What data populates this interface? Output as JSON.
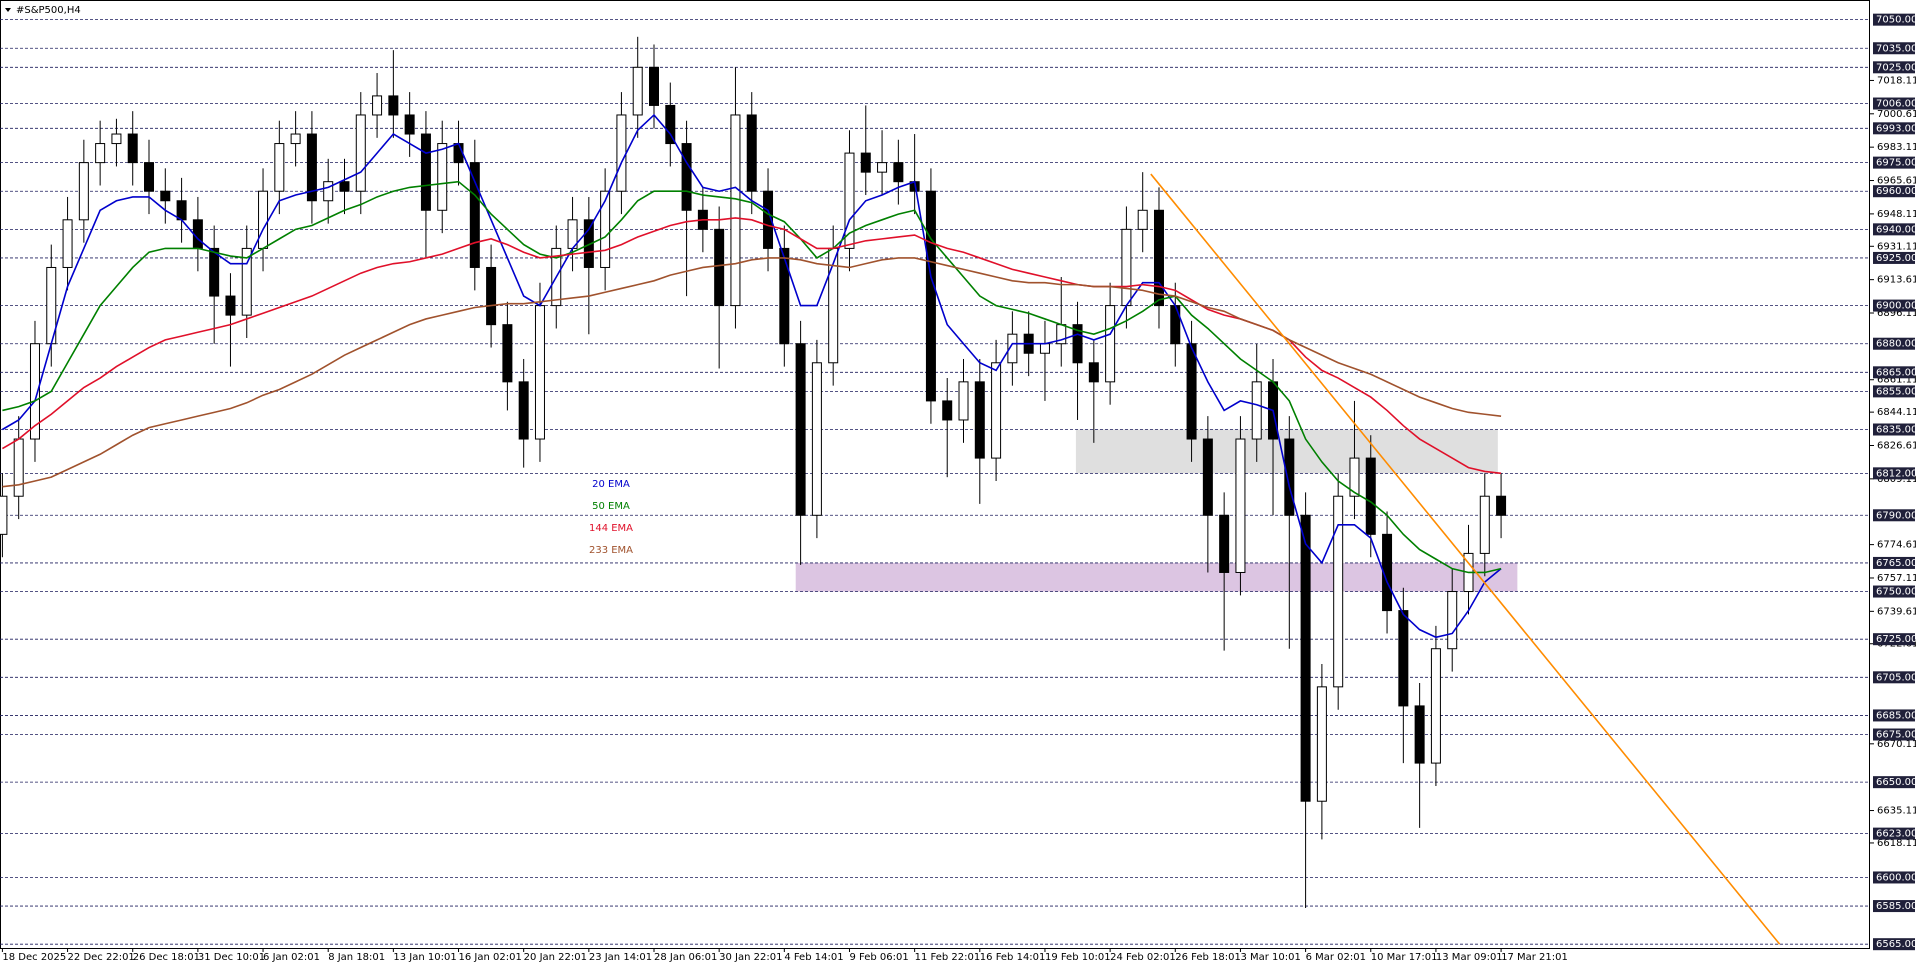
{
  "chart_data": {
    "type": "candlestick",
    "title": "#S&P500,H4",
    "categories": [
      "18 Dec 2025",
      null,
      null,
      null,
      "22 Dec 22:01",
      null,
      null,
      null,
      "26 Dec 18:01",
      null,
      null,
      null,
      "31 Dec 10:01",
      null,
      null,
      null,
      "6 Jan 02:01",
      null,
      null,
      null,
      "8 Jan 18:01",
      null,
      null,
      null,
      "13 Jan 10:01",
      null,
      null,
      null,
      "16 Jan 02:01",
      null,
      null,
      null,
      "20 Jan 22:01",
      null,
      null,
      null,
      "23 Jan 14:01",
      null,
      null,
      null,
      "28 Jan 06:01",
      null,
      null,
      null,
      "30 Jan 22:01",
      null,
      null,
      null,
      "4 Feb 14:01",
      null,
      null,
      null,
      "9 Feb 06:01",
      null,
      null,
      null,
      "11 Feb 22:01",
      null,
      null,
      null,
      "16 Feb 14:01",
      null,
      null,
      null,
      "19 Feb 10:01",
      null,
      null,
      null,
      "24 Feb 02:01",
      null,
      null,
      null,
      "26 Feb 18:01",
      null,
      null,
      null,
      "3 Mar 10:01",
      null,
      null,
      null,
      "6 Mar 02:01",
      null,
      null,
      null,
      "10 Mar 17:01",
      null,
      null,
      null,
      "13 Mar 09:01",
      null,
      null,
      null,
      "17 Mar 21:01"
    ],
    "open": [
      6780,
      6800,
      6830,
      6880,
      6920,
      6945,
      6975,
      6985,
      6990,
      6975,
      6960,
      6955,
      6945,
      6930,
      6905,
      6895,
      6930,
      6960,
      6985,
      6990,
      6955,
      6965,
      6960,
      7000,
      7010,
      7000,
      6990,
      6950,
      6985,
      6975,
      6920,
      6890,
      6860,
      6830,
      6900,
      6930,
      6945,
      6920,
      6960,
      7000,
      7025,
      7005,
      6985,
      6950,
      6940,
      6900,
      7000,
      6960,
      6930,
      6880,
      6790,
      6870,
      6930,
      6980,
      6970,
      6975,
      6965,
      6960,
      6850,
      6840,
      6860,
      6820,
      6870,
      6885,
      6875,
      6880,
      6890,
      6870,
      6860,
      6900,
      6940,
      6950,
      6900,
      6880,
      6830,
      6790,
      6760,
      6830,
      6860,
      6830,
      6790,
      6640,
      6700,
      6800,
      6820,
      6780,
      6740,
      6690,
      6660,
      6720,
      6750,
      6770,
      6800
    ],
    "high": [
      6812,
      6842,
      6892,
      6932,
      6957,
      6987,
      6997,
      6998,
      7002,
      6987,
      6972,
      6967,
      6957,
      6942,
      6917,
      6942,
      6972,
      6997,
      7002,
      7002,
      6977,
      6977,
      7012,
      7022,
      7034,
      7012,
      7002,
      6997,
      6997,
      6987,
      6932,
      6902,
      6872,
      6912,
      6942,
      6957,
      6957,
      6972,
      7012,
      7041,
      7037,
      7017,
      6997,
      6962,
      6952,
      7025,
      7012,
      6972,
      6942,
      6892,
      6882,
      6942,
      6992,
      7005,
      6992,
      6987,
      6990,
      6972,
      6862,
      6872,
      6872,
      6882,
      6897,
      6897,
      6892,
      6915,
      6902,
      6882,
      6912,
      6952,
      6970,
      6962,
      6912,
      6892,
      6842,
      6802,
      6842,
      6880,
      6872,
      6842,
      6802,
      6712,
      6812,
      6850,
      6832,
      6792,
      6752,
      6702,
      6732,
      6762,
      6785,
      6812,
      6812
    ],
    "low": [
      6768,
      6788,
      6818,
      6868,
      6908,
      6933,
      6963,
      6973,
      6963,
      6948,
      6943,
      6933,
      6918,
      6880,
      6868,
      6883,
      6918,
      6948,
      6973,
      6943,
      6943,
      6948,
      6948,
      6988,
      6988,
      6978,
      6925,
      6938,
      6963,
      6908,
      6878,
      6845,
      6815,
      6818,
      6888,
      6918,
      6885,
      6908,
      6948,
      6988,
      6993,
      6973,
      6905,
      6928,
      6867,
      6888,
      6948,
      6918,
      6868,
      6764,
      6778,
      6858,
      6918,
      6958,
      6958,
      6953,
      6948,
      6838,
      6810,
      6828,
      6796,
      6808,
      6858,
      6863,
      6850,
      6868,
      6840,
      6828,
      6848,
      6888,
      6928,
      6888,
      6868,
      6818,
      6760,
      6719,
      6748,
      6818,
      6790,
      6720,
      6584,
      6620,
      6688,
      6788,
      6768,
      6728,
      6660,
      6626,
      6648,
      6708,
      6738,
      6758,
      6778
    ],
    "close": [
      6800,
      6830,
      6880,
      6920,
      6945,
      6975,
      6985,
      6990,
      6975,
      6960,
      6955,
      6945,
      6930,
      6905,
      6895,
      6930,
      6960,
      6985,
      6990,
      6955,
      6965,
      6960,
      7000,
      7010,
      7000,
      6990,
      6950,
      6985,
      6975,
      6920,
      6890,
      6860,
      6830,
      6900,
      6930,
      6945,
      6920,
      6960,
      7000,
      7025,
      7005,
      6985,
      6950,
      6940,
      6900,
      7000,
      6960,
      6930,
      6880,
      6790,
      6870,
      6930,
      6980,
      6970,
      6975,
      6965,
      6960,
      6850,
      6840,
      6860,
      6820,
      6870,
      6885,
      6875,
      6880,
      6890,
      6870,
      6860,
      6900,
      6940,
      6950,
      6900,
      6880,
      6830,
      6790,
      6760,
      6830,
      6860,
      6830,
      6790,
      6640,
      6700,
      6800,
      6820,
      6780,
      6740,
      6690,
      6660,
      6720,
      6750,
      6770,
      6800,
      6790
    ],
    "series": [
      {
        "name": "20 EMA",
        "color": "#0000cc",
        "values": [
          6835,
          6840,
          6850,
          6880,
          6910,
          6930,
          6950,
          6955,
          6957,
          6957,
          6950,
          6945,
          6935,
          6928,
          6922,
          6922,
          6940,
          6955,
          6958,
          6960,
          6962,
          6966,
          6970,
          6980,
          6990,
          6985,
          6980,
          6982,
          6985,
          6965,
          6945,
          6925,
          6905,
          6900,
          6915,
          6930,
          6940,
          6955,
          6975,
          6992,
          7000,
          6990,
          6975,
          6962,
          6960,
          6962,
          6955,
          6950,
          6925,
          6900,
          6900,
          6922,
          6945,
          6955,
          6958,
          6962,
          6965,
          6915,
          6890,
          6880,
          6870,
          6866,
          6880,
          6880,
          6880,
          6882,
          6885,
          6882,
          6885,
          6900,
          6912,
          6912,
          6900,
          6878,
          6860,
          6845,
          6850,
          6848,
          6845,
          6805,
          6775,
          6765,
          6785,
          6785,
          6778,
          6755,
          6738,
          6730,
          6726,
          6728,
          6740,
          6755,
          6762
        ]
      },
      {
        "name": "50 EMA",
        "color": "#008000",
        "values": [
          6845,
          6847,
          6850,
          6855,
          6870,
          6885,
          6900,
          6910,
          6920,
          6928,
          6930,
          6930,
          6930,
          6928,
          6926,
          6925,
          6930,
          6935,
          6940,
          6942,
          6946,
          6950,
          6953,
          6957,
          6960,
          6962,
          6963,
          6964,
          6965,
          6958,
          6948,
          6940,
          6932,
          6927,
          6925,
          6928,
          6932,
          6936,
          6945,
          6955,
          6960,
          6960,
          6960,
          6958,
          6957,
          6956,
          6954,
          6948,
          6944,
          6935,
          6925,
          6930,
          6938,
          6942,
          6945,
          6948,
          6950,
          6935,
          6925,
          6915,
          6905,
          6900,
          6898,
          6896,
          6893,
          6890,
          6887,
          6885,
          6888,
          6892,
          6897,
          6903,
          6905,
          6895,
          6888,
          6880,
          6872,
          6866,
          6860,
          6850,
          6830,
          6818,
          6808,
          6802,
          6797,
          6790,
          6780,
          6772,
          6767,
          6762,
          6760,
          6760,
          6762
        ]
      },
      {
        "name": "144 EMA",
        "color": "#e0102a",
        "values": [
          6825,
          6830,
          6837,
          6843,
          6850,
          6857,
          6862,
          6868,
          6873,
          6878,
          6882,
          6884,
          6886,
          6888,
          6890,
          6893,
          6896,
          6899,
          6902,
          6905,
          6909,
          6913,
          6917,
          6920,
          6922,
          6923,
          6925,
          6927,
          6930,
          6933,
          6935,
          6932,
          6928,
          6925,
          6926,
          6927,
          6928,
          6929,
          6932,
          6936,
          6939,
          6942,
          6944,
          6945,
          6945,
          6946,
          6945,
          6942,
          6940,
          6935,
          6930,
          6930,
          6932,
          6934,
          6935,
          6936,
          6937,
          6933,
          6930,
          6928,
          6925,
          6922,
          6919,
          6917,
          6915,
          6913,
          6911,
          6910,
          6910,
          6910,
          6911,
          6910,
          6908,
          6903,
          6898,
          6895,
          6893,
          6890,
          6887,
          6882,
          6873,
          6866,
          6862,
          6857,
          6852,
          6845,
          6837,
          6830,
          6825,
          6820,
          6815,
          6813,
          6812
        ]
      },
      {
        "name": "233 EMA",
        "color": "#a0522d",
        "values": [
          6805,
          6806,
          6808,
          6810,
          6814,
          6818,
          6822,
          6827,
          6832,
          6836,
          6838,
          6840,
          6842,
          6844,
          6846,
          6849,
          6853,
          6856,
          6860,
          6864,
          6869,
          6874,
          6878,
          6882,
          6886,
          6890,
          6893,
          6895,
          6897,
          6899,
          6900,
          6901,
          6901,
          6902,
          6903,
          6904,
          6905,
          6907,
          6909,
          6911,
          6913,
          6916,
          6918,
          6920,
          6921,
          6922,
          6924,
          6925,
          6925,
          6924,
          6922,
          6921,
          6920,
          6922,
          6924,
          6925,
          6925,
          6923,
          6921,
          6919,
          6917,
          6915,
          6913,
          6912,
          6912,
          6911,
          6911,
          6910,
          6910,
          6909,
          6908,
          6906,
          6905,
          6902,
          6899,
          6897,
          6893,
          6890,
          6887,
          6882,
          6878,
          6874,
          6870,
          6867,
          6864,
          6860,
          6856,
          6852,
          6849,
          6846,
          6844,
          6843,
          6842
        ]
      }
    ],
    "ylim": [
      6563,
      7059
    ],
    "yticks": [
      7018.11,
      7000.61,
      6983.11,
      6965.61,
      6948.11,
      6931.11,
      6913.61,
      6896.11,
      6861.11,
      6844.11,
      6826.61,
      6809.11,
      6774.61,
      6757.11,
      6739.61,
      6722.61,
      6670.11,
      6635.11,
      6618.11
    ],
    "levels": [
      {
        "value": 7050,
        "label": "7050.00"
      },
      {
        "value": 7035,
        "label": "7035.00"
      },
      {
        "value": 7025,
        "label": "7025.00"
      },
      {
        "value": 7006,
        "label": "7006.00"
      },
      {
        "value": 6993,
        "label": "6993.00"
      },
      {
        "value": 6975,
        "label": "6975.00"
      },
      {
        "value": 6960,
        "label": "6960.00"
      },
      {
        "value": 6940,
        "label": "6940.00"
      },
      {
        "value": 6925,
        "label": "6925.00"
      },
      {
        "value": 6900,
        "label": "6900.00"
      },
      {
        "value": 6880,
        "label": "6880.00"
      },
      {
        "value": 6865,
        "label": "6865.00"
      },
      {
        "value": 6855,
        "label": "6855.00"
      },
      {
        "value": 6835,
        "label": "6835.00"
      },
      {
        "value": 6812,
        "label": "6812.00"
      },
      {
        "value": 6790,
        "label": "6790.00"
      },
      {
        "value": 6765,
        "label": "6765.00"
      },
      {
        "value": 6750,
        "label": "6750.00"
      },
      {
        "value": 6725,
        "label": "6725.00"
      },
      {
        "value": 6705,
        "label": "6705.00"
      },
      {
        "value": 6685,
        "label": "6685.00"
      },
      {
        "value": 6675,
        "label": "6675.00"
      },
      {
        "value": 6650,
        "label": "6650.00"
      },
      {
        "value": 6623,
        "label": "6623.00"
      },
      {
        "value": 6600,
        "label": "6600.00"
      },
      {
        "value": 6585,
        "label": "6585.00"
      },
      {
        "value": 6565,
        "label": "6565.00"
      }
    ],
    "zones": [
      {
        "x": [
          65.9,
          91.8
        ],
        "values": [
          6835,
          6812
        ],
        "color": "#d9d9d9"
      },
      {
        "x": [
          48.7,
          93.0
        ],
        "values": [
          6765,
          6750
        ],
        "color": "#d6bbdd"
      }
    ],
    "trendline": {
      "x": [
        70.5,
        109.1
      ],
      "values": [
        6969,
        6565
      ],
      "color": "#ff8c00"
    },
    "grid": true
  }
}
